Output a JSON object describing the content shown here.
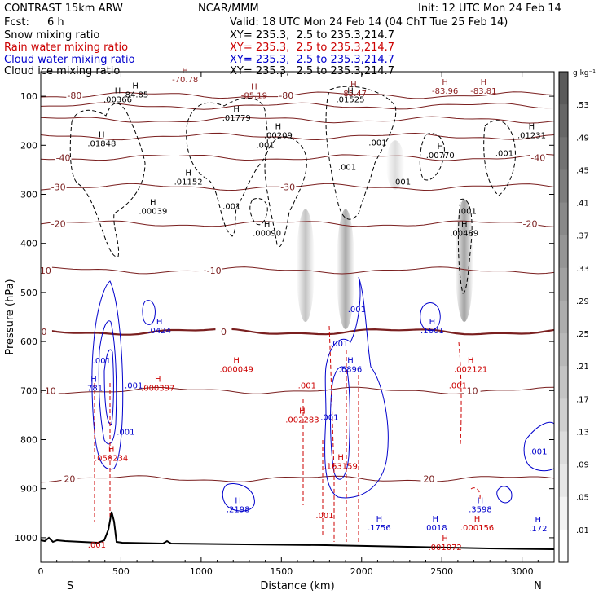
{
  "header": {
    "model": "CONTRAST 15km ARW",
    "org": "NCAR/MMM",
    "init": "Init: 12 UTC Mon 24 Feb 14",
    "fcst_label": "Fcst:",
    "fcst_value": "6 h",
    "valid": "Valid: 18 UTC Mon 24 Feb 14 (04 ChT Tue 25 Feb 14)"
  },
  "legend": [
    {
      "label": "Snow mixing ratio",
      "xy": "XY= 235.3,  2.5 to 235.3,214.7",
      "color": "#000000"
    },
    {
      "label": "Rain water mixing ratio",
      "xy": "XY= 235.3,  2.5 to 235.3,214.7",
      "color": "#cc0000"
    },
    {
      "label": "Cloud water mixing ratio",
      "xy": "XY= 235.3,  2.5 to 235.3,214.7",
      "color": "#0000cc"
    },
    {
      "label": "Cloud ice mixing ratio",
      "xy": "XY= 235.3,  2.5 to 235.3,214.7",
      "color": "#000000"
    }
  ],
  "colorbar": {
    "unit": "g kg⁻¹",
    "ticks": [
      ".53",
      ".49",
      ".45",
      ".41",
      ".37",
      ".33",
      ".29",
      ".25",
      ".21",
      ".17",
      ".13",
      ".09",
      ".05",
      ".01"
    ]
  },
  "chart_data": {
    "type": "contour",
    "xlabel": "Distance (km)",
    "ylabel": "Pressure (hPa)",
    "xlim": [
      0,
      3200
    ],
    "ylim": [
      1050,
      50
    ],
    "x_ticks": [
      0,
      500,
      1000,
      1500,
      2000,
      2500,
      3000
    ],
    "x_tick_labels": [
      "0",
      "500",
      "1000",
      "1500",
      "2000",
      "2500",
      "3000"
    ],
    "y_ticks": [
      100,
      200,
      300,
      400,
      500,
      600,
      700,
      800,
      900,
      1000
    ],
    "y_tick_labels": [
      "100",
      "200",
      "300",
      "400",
      "500",
      "600",
      "700",
      "800",
      "900",
      "1000"
    ],
    "x_end_labels": {
      "left": "S",
      "right": "N"
    },
    "temperature_isotherms": [
      {
        "value": "-80",
        "p": 98,
        "label_x": 210,
        "label_x2": 1530
      },
      {
        "value": "-70",
        "p": 120
      },
      {
        "value": "-60",
        "p": 148
      },
      {
        "value": "-50",
        "p": 182
      },
      {
        "value": "-40",
        "p": 225,
        "label_x": 140,
        "label_x2": 3100
      },
      {
        "value": "-30",
        "p": 285,
        "label_x": 110,
        "label_x2": 1540
      },
      {
        "value": "-20",
        "p": 360,
        "label_x": 110,
        "label_x2": 3050
      },
      {
        "value": "-10",
        "p": 455,
        "label_x": 20,
        "label_x2": 1080
      },
      {
        "value": "0",
        "p": 580,
        "label_x": 20,
        "label_x2": 1140
      },
      {
        "value": "10",
        "p": 700,
        "label_x": 60,
        "label_x2": 2690
      },
      {
        "value": "20",
        "p": 880,
        "label_x": 180,
        "label_x2": 2420
      }
    ],
    "maxima_labels": [
      {
        "text": "-84.85",
        "x": 590,
        "p": 102,
        "color": "#000000"
      },
      {
        "text": ".00366",
        "x": 480,
        "p": 112,
        "color": "#000000"
      },
      {
        "text": "-70.78",
        "x": 900,
        "p": 72,
        "color": "#8b1a1a"
      },
      {
        "text": "-85.19",
        "x": 1330,
        "p": 104,
        "color": "#8b1a1a"
      },
      {
        "text": "-85.47",
        "x": 1950,
        "p": 100,
        "color": "#8b1a1a"
      },
      {
        "text": ".01525",
        "x": 1930,
        "p": 112,
        "color": "#000000"
      },
      {
        "text": "-83.96",
        "x": 2520,
        "p": 95,
        "color": "#8b1a1a"
      },
      {
        "text": "-83.81",
        "x": 2760,
        "p": 95,
        "color": "#8b1a1a"
      },
      {
        "text": ".01848",
        "x": 380,
        "p": 202,
        "color": "#000000"
      },
      {
        "text": ".01779",
        "x": 1220,
        "p": 150,
        "color": "#000000"
      },
      {
        "text": ".00209",
        "x": 1480,
        "p": 185,
        "color": "#000000"
      },
      {
        "text": ".01231",
        "x": 3060,
        "p": 185,
        "color": "#000000"
      },
      {
        "text": ".00770",
        "x": 2490,
        "p": 226,
        "color": "#000000"
      },
      {
        "text": ".01152",
        "x": 920,
        "p": 280,
        "color": "#000000"
      },
      {
        "text": ".00039",
        "x": 700,
        "p": 340,
        "color": "#000000"
      },
      {
        "text": ".00090",
        "x": 1410,
        "p": 385,
        "color": "#000000"
      },
      {
        "text": ".00489",
        "x": 2640,
        "p": 385,
        "color": "#000000"
      },
      {
        "text": ".0424",
        "x": 740,
        "p": 583,
        "color": "#0000cc"
      },
      {
        "text": ".1601",
        "x": 2440,
        "p": 583,
        "color": "#0000cc"
      },
      {
        "text": ".000049",
        "x": 1220,
        "p": 662,
        "color": "#cc0000"
      },
      {
        "text": ".6896",
        "x": 1930,
        "p": 662,
        "color": "#0000cc"
      },
      {
        "text": ".002121",
        "x": 2680,
        "p": 662,
        "color": "#cc0000"
      },
      {
        "text": ".000397",
        "x": 730,
        "p": 700,
        "color": "#cc0000"
      },
      {
        "text": ".781",
        "x": 330,
        "p": 700,
        "color": "#0000cc"
      },
      {
        "text": ".002283",
        "x": 1630,
        "p": 765,
        "color": "#cc0000"
      },
      {
        "text": ".058234",
        "x": 440,
        "p": 843,
        "color": "#cc0000"
      },
      {
        "text": ".163159",
        "x": 1870,
        "p": 860,
        "color": "#cc0000"
      },
      {
        "text": ".2198",
        "x": 1230,
        "p": 948,
        "color": "#0000cc"
      },
      {
        "text": ".1756",
        "x": 2110,
        "p": 985,
        "color": "#0000cc"
      },
      {
        "text": ".0018",
        "x": 2460,
        "p": 985,
        "color": "#0000cc"
      },
      {
        "text": ".3598",
        "x": 2740,
        "p": 948,
        "color": "#0000cc"
      },
      {
        "text": ".000156",
        "x": 2720,
        "p": 985,
        "color": "#cc0000"
      },
      {
        "text": ".001072",
        "x": 2520,
        "p": 1025,
        "color": "#cc0000"
      },
      {
        "text": ".172",
        "x": 3100,
        "p": 987,
        "color": "#0000cc"
      }
    ],
    "contour_value_labels": [
      {
        "text": ".001",
        "x": 1400,
        "p": 205,
        "color": "#000000"
      },
      {
        "text": ".001",
        "x": 1190,
        "p": 330,
        "color": "#000000"
      },
      {
        "text": ".001",
        "x": 1910,
        "p": 250,
        "color": "#000000"
      },
      {
        "text": ".001",
        "x": 2100,
        "p": 200,
        "color": "#000000"
      },
      {
        "text": ".001",
        "x": 2250,
        "p": 280,
        "color": "#000000"
      },
      {
        "text": ".001",
        "x": 2890,
        "p": 222,
        "color": "#000000"
      },
      {
        "text": ".001",
        "x": 2660,
        "p": 340,
        "color": "#000000"
      },
      {
        "text": ".001",
        "x": 1970,
        "p": 540,
        "color": "#0000cc"
      },
      {
        "text": ".001",
        "x": 1860,
        "p": 610,
        "color": "#0000cc"
      },
      {
        "text": ".001",
        "x": 380,
        "p": 645,
        "color": "#0000cc"
      },
      {
        "text": ".001",
        "x": 580,
        "p": 695,
        "color": "#0000cc"
      },
      {
        "text": ".001",
        "x": 530,
        "p": 790,
        "color": "#0000cc"
      },
      {
        "text": ".001",
        "x": 1800,
        "p": 760,
        "color": "#0000cc"
      },
      {
        "text": ".001",
        "x": 1660,
        "p": 695,
        "color": "#cc0000"
      },
      {
        "text": ".001",
        "x": 2600,
        "p": 695,
        "color": "#cc0000"
      },
      {
        "text": ".001",
        "x": 1770,
        "p": 960,
        "color": "#cc0000"
      },
      {
        "text": ".001",
        "x": 3100,
        "p": 830,
        "color": "#0000cc"
      },
      {
        "text": ".001",
        "x": 350,
        "p": 1020,
        "color": "#cc0000"
      }
    ],
    "shaded_columns": [
      {
        "x": 1650,
        "p_top": 330,
        "p_bot": 560,
        "intensity": 0.35
      },
      {
        "x": 1900,
        "p_top": 330,
        "p_bot": 575,
        "intensity": 0.5
      },
      {
        "x": 2210,
        "p_top": 190,
        "p_bot": 290,
        "intensity": 0.2
      },
      {
        "x": 2640,
        "p_top": 310,
        "p_bot": 560,
        "intensity": 0.55
      }
    ]
  }
}
